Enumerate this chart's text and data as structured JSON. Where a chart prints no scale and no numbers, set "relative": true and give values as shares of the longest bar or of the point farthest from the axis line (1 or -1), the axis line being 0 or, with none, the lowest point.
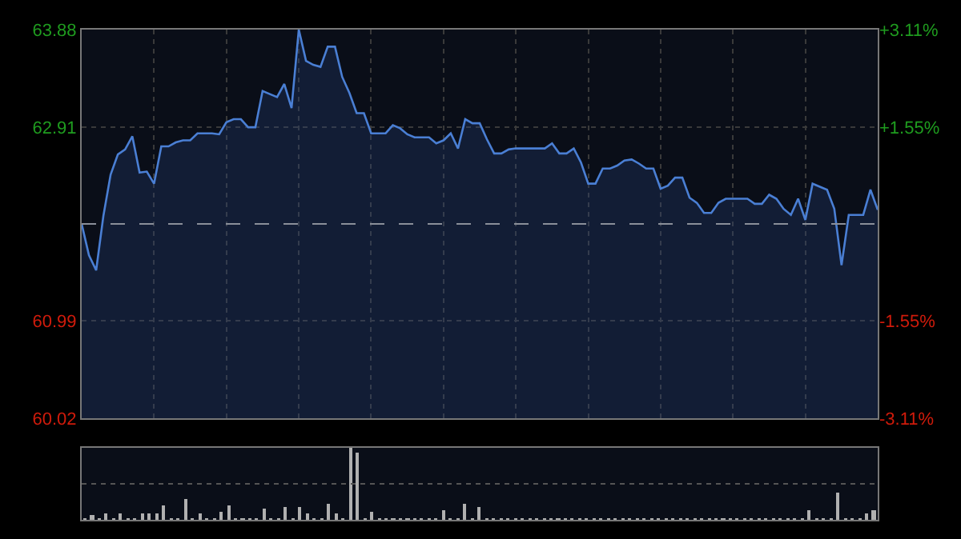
{
  "chart_data": [
    {
      "type": "area",
      "categories": [
        null,
        null,
        null,
        null,
        null,
        null,
        null,
        null,
        null,
        null,
        null,
        null,
        null,
        null,
        null,
        null,
        null,
        null,
        null,
        null,
        null,
        null,
        null,
        null,
        null,
        null,
        null,
        null,
        null,
        null,
        null,
        null,
        null,
        null,
        null,
        null,
        null,
        null,
        null,
        null,
        null,
        null,
        null,
        null,
        null,
        null,
        null,
        null,
        null,
        null,
        null,
        null,
        null,
        null,
        null,
        null,
        null,
        null,
        null,
        null,
        null,
        null,
        null,
        null,
        null,
        null,
        null,
        null,
        null,
        null,
        null,
        null,
        null,
        null,
        null,
        null,
        null,
        null,
        null,
        null,
        null,
        null,
        null,
        null,
        null,
        null,
        null,
        null,
        null,
        null,
        null,
        null,
        null,
        null,
        null,
        null,
        null,
        null,
        null,
        null,
        null,
        null,
        null,
        null,
        null,
        null,
        null,
        null,
        null,
        null,
        null
      ],
      "series": [
        {
          "color": "#4a7fd4",
          "values": [
            61.95,
            61.64,
            61.49,
            62.03,
            62.44,
            62.64,
            62.69,
            62.82,
            62.46,
            62.47,
            62.35,
            62.72,
            62.72,
            62.76,
            62.78,
            62.78,
            62.85,
            62.85,
            62.85,
            62.84,
            62.96,
            62.99,
            62.99,
            62.91,
            62.91,
            63.27,
            63.24,
            63.21,
            63.34,
            63.1,
            63.88,
            63.57,
            63.53,
            63.51,
            63.71,
            63.71,
            63.41,
            63.25,
            63.05,
            63.05,
            62.85,
            62.85,
            62.85,
            62.93,
            62.9,
            62.84,
            62.81,
            62.81,
            62.81,
            62.75,
            62.78,
            62.85,
            62.7,
            62.99,
            62.95,
            62.95,
            62.79,
            62.65,
            62.65,
            62.69,
            62.7,
            62.7,
            62.7,
            62.7,
            62.7,
            62.75,
            62.65,
            62.65,
            62.7,
            62.56,
            62.35,
            62.35,
            62.5,
            62.5,
            62.53,
            62.58,
            62.59,
            62.55,
            62.5,
            62.5,
            62.3,
            62.33,
            62.41,
            62.41,
            62.21,
            62.16,
            62.06,
            62.06,
            62.16,
            62.2,
            62.2,
            62.2,
            62.2,
            62.15,
            62.15,
            62.24,
            62.2,
            62.1,
            62.04,
            62.2,
            61.99,
            62.35,
            62.32,
            62.29,
            62.1,
            61.54,
            62.04,
            62.04,
            62.04,
            62.29,
            62.09
          ]
        }
      ],
      "ylim": [
        60.02,
        63.88
      ],
      "yticks": [
        60.02,
        60.99,
        62.91,
        63.88
      ],
      "y2lim": [
        -3.11,
        3.11
      ],
      "y2ticks": [
        {
          "value": -3.11,
          "label": "-3.11%"
        },
        {
          "value": -1.55,
          "label": "-1.55%"
        },
        {
          "value": 1.55,
          "label": "+1.55%"
        },
        {
          "value": 3.11,
          "label": "+3.11%"
        }
      ],
      "ref_lines": [
        {
          "axis": "y",
          "value": 61.95,
          "color": "#8a8f99",
          "line_style": "dashed"
        }
      ],
      "grid": true,
      "legend": false,
      "tick_labels": "y"
    },
    {
      "type": "bar",
      "relative": true,
      "color": "#b0b0b0",
      "legend": false,
      "tick_labels": false,
      "ref_lines": [
        {
          "axis": "y",
          "value": 0.5,
          "color": "#555555",
          "line_style": "dotted"
        }
      ],
      "categories": [
        null,
        null,
        null,
        null,
        null,
        null,
        null,
        null,
        null,
        null,
        null,
        null,
        null,
        null,
        null,
        null,
        null,
        null,
        null,
        null,
        null,
        null,
        null,
        null,
        null,
        null,
        null,
        null,
        null,
        null,
        null,
        null,
        null,
        null,
        null,
        null,
        null,
        null,
        null,
        null,
        null,
        null,
        null,
        null,
        null,
        null,
        null,
        null,
        null,
        null,
        null,
        null,
        null,
        null,
        null,
        null,
        null,
        null,
        null,
        null,
        null,
        null,
        null,
        null,
        null,
        null,
        null,
        null,
        null,
        null,
        null,
        null,
        null,
        null,
        null,
        null,
        null,
        null,
        null,
        null,
        null,
        null,
        null,
        null,
        null,
        null,
        null,
        null,
        null,
        null,
        null,
        null,
        null,
        null,
        null,
        null,
        null,
        null,
        null,
        null,
        null,
        null,
        null,
        null,
        null,
        null,
        null,
        null,
        null,
        null,
        null
      ],
      "values": [
        0.03,
        0.08,
        0.03,
        0.1,
        0.03,
        0.1,
        0.03,
        0.03,
        0.1,
        0.1,
        0.09,
        0.21,
        0.03,
        0.03,
        0.3,
        0.03,
        0.1,
        0.03,
        0.03,
        0.12,
        0.21,
        0.03,
        0.03,
        0.03,
        0.03,
        0.17,
        0.03,
        0.03,
        0.18,
        0.03,
        0.18,
        0.1,
        0.03,
        0.03,
        0.23,
        0.1,
        0.03,
        1.0,
        0.94,
        0.03,
        0.12,
        0.03,
        0.03,
        0.03,
        0.03,
        0.03,
        0.03,
        0.03,
        0.03,
        0.03,
        0.13,
        0.03,
        0.03,
        0.23,
        0.03,
        0.18,
        0.03,
        0.03,
        0.03,
        0.03,
        0.03,
        0.03,
        0.03,
        0.03,
        0.03,
        0.03,
        0.03,
        0.03,
        0.03,
        0.03,
        0.03,
        0.03,
        0.03,
        0.03,
        0.03,
        0.03,
        0.03,
        0.03,
        0.03,
        0.03,
        0.03,
        0.03,
        0.03,
        0.03,
        0.03,
        0.03,
        0.03,
        0.03,
        0.03,
        0.03,
        0.03,
        0.03,
        0.03,
        0.03,
        0.03,
        0.03,
        0.03,
        0.03,
        0.03,
        0.03,
        0.03,
        0.15,
        0.03,
        0.03,
        0.03,
        0.39,
        0.03,
        0.03,
        0.03,
        0.09,
        0.13
      ]
    }
  ]
}
